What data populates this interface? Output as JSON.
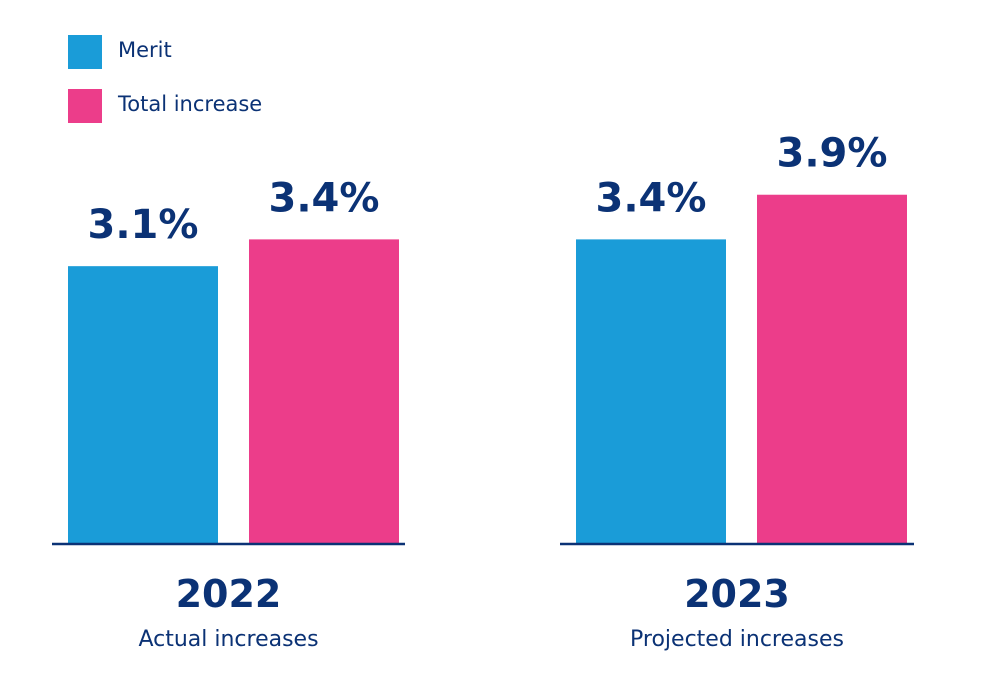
{
  "chart_data": {
    "type": "bar",
    "title": "",
    "xlabel": "",
    "ylabel": "",
    "ylim": [
      0,
      4.0
    ],
    "grid": false,
    "legend_position": "top-left",
    "categories": [
      "2022",
      "2023"
    ],
    "category_subtitles": [
      "Actual increases",
      "Projected increases"
    ],
    "series": [
      {
        "name": "Merit",
        "color": "#1a9cd8",
        "values": [
          3.1,
          3.4
        ],
        "labels": [
          "3.1%",
          "3.4%"
        ]
      },
      {
        "name": "Total increase",
        "color": "#ec3d8a",
        "values": [
          3.4,
          3.9
        ],
        "labels": [
          "3.4%",
          "3.9%"
        ]
      }
    ],
    "axis_color": "#0b3275",
    "text_color": "#0b3275"
  }
}
